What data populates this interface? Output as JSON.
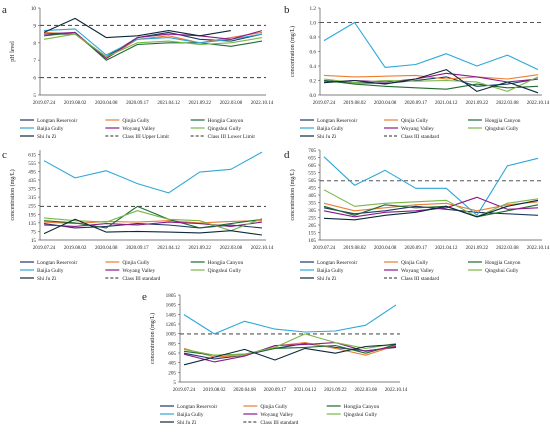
{
  "colors": {
    "Longtan Reservoir": "#1f3864",
    "Qinjia Gully": "#ed7d31",
    "Hongjia Canyon": "#1e6b30",
    "Baijia Gully": "#2ea8d8",
    "Woyang Valley": "#8b1a8b",
    "Qingshui Gully": "#7ab648",
    "Shi Ju Zi": "#0d2a3a",
    "Class III standard": "#555555"
  },
  "chart_data": [
    {
      "panel": "a",
      "type": "line",
      "ylabel": "pH level",
      "ylim": [
        5,
        10
      ],
      "yticks": [
        "5",
        "6",
        "7",
        "8",
        "9",
        "10"
      ],
      "categories": [
        "2019.07.24",
        "2019.08.02",
        "2020.04.08",
        "2020.09.17",
        "2021.04.12",
        "2021.09.22",
        "2022.03.08",
        "2022.10.14"
      ],
      "series": [
        {
          "name": "Longtan Reservoir",
          "values": [
            8.5,
            8.5,
            7.2,
            8.3,
            8.6,
            8.2,
            8.1,
            8.5
          ]
        },
        {
          "name": "Qinjia Gully",
          "values": [
            8.6,
            8.5,
            7.1,
            8.2,
            8.4,
            8.0,
            8.3,
            8.6
          ]
        },
        {
          "name": "Hongjia Canyon",
          "values": [
            8.4,
            8.6,
            7.0,
            7.9,
            8.0,
            8.0,
            7.8,
            8.1
          ]
        },
        {
          "name": "Baijia Gully",
          "values": [
            8.7,
            8.8,
            7.3,
            8.2,
            8.3,
            8.0,
            8.2,
            8.5
          ]
        },
        {
          "name": "Woyang Valley",
          "values": [
            8.5,
            8.6,
            7.1,
            8.3,
            8.5,
            8.4,
            8.2,
            8.7
          ]
        },
        {
          "name": "Qingshui Gully",
          "values": [
            8.2,
            8.5,
            7.2,
            8.0,
            8.1,
            7.9,
            8.0,
            8.3
          ]
        },
        {
          "name": "Shi Ju Zi",
          "values": [
            8.6,
            9.4,
            8.3,
            8.4,
            8.7,
            8.4,
            8.7,
            null
          ]
        }
      ],
      "hlines": [
        {
          "name": "Class III Upper Limit",
          "value": 9
        },
        {
          "name": "Class III Lower Limit",
          "value": 6
        }
      ],
      "legend": [
        "Longtan Reservoir",
        "Qinjia Gully",
        "Hongjia Canyon",
        "Baijia Gully",
        "Woyang Valley",
        "Qingshui Gully",
        "Shi Ju Zi",
        "Class III Upper Limit",
        "Class III Lower Limit"
      ]
    },
    {
      "panel": "b",
      "type": "line",
      "ylabel": "concentration (mg/L)",
      "ylim": [
        0.0,
        1.2
      ],
      "yticks": [
        "0.0",
        "0.2",
        "0.4",
        "0.6",
        "0.8",
        "1.0",
        "1.2"
      ],
      "categories": [
        "2019.07.24",
        "2019.08.02",
        "2020.04.08",
        "2020.09.17",
        "2021.04.12",
        "2021.09.22",
        "2022.03.08",
        "2022.10.14"
      ],
      "series": [
        {
          "name": "Longtan Reservoir",
          "values": [
            0.2,
            0.17,
            0.16,
            0.2,
            0.25,
            0.12,
            0.15,
            0.22
          ]
        },
        {
          "name": "Qinjia Gully",
          "values": [
            0.27,
            0.25,
            0.26,
            0.27,
            0.22,
            0.25,
            0.22,
            0.28
          ]
        },
        {
          "name": "Hongjia Canyon",
          "values": [
            0.2,
            0.15,
            0.12,
            0.1,
            0.08,
            0.15,
            0.1,
            0.12
          ]
        },
        {
          "name": "Baijia Gully",
          "values": [
            0.75,
            1.0,
            0.38,
            0.42,
            0.57,
            0.4,
            0.55,
            0.35
          ]
        },
        {
          "name": "Woyang Valley",
          "values": [
            0.18,
            0.2,
            0.18,
            0.22,
            0.3,
            0.25,
            0.18,
            0.22
          ]
        },
        {
          "name": "Qingshui Gully",
          "values": [
            0.22,
            0.17,
            0.2,
            0.19,
            0.2,
            0.18,
            0.05,
            0.25
          ]
        },
        {
          "name": "Shi Ju Zi",
          "values": [
            0.17,
            0.2,
            0.15,
            0.22,
            0.35,
            0.05,
            0.18,
            0.03
          ]
        }
      ],
      "hlines": [
        {
          "name": "Class III standard",
          "value": 1.0
        }
      ],
      "legend": [
        "Longtan Reservoir",
        "Qinjia Gully",
        "Hongjia Canyon",
        "Baijia Gully",
        "Woyang Valley",
        "Qingshui Gully",
        "Shi Ju Zi",
        "Class III standard"
      ]
    },
    {
      "panel": "c",
      "type": "line",
      "ylabel": "concentration (mg/L)",
      "ylim": [
        15,
        645
      ],
      "yticks": [
        "15",
        "75",
        "135",
        "195",
        "255",
        "315",
        "375",
        "435",
        "495",
        "555",
        "615"
      ],
      "categories": [
        "2019.07.24",
        "2019.08.02",
        "2020.04.08",
        "2020.09.17",
        "2021.04.12",
        "2021.09.22",
        "2022.03.08",
        "2022.10.14"
      ],
      "series": [
        {
          "name": "Longtan Reservoir",
          "values": [
            130,
            100,
            110,
            130,
            120,
            100,
            120,
            100
          ]
        },
        {
          "name": "Qinjia Gully",
          "values": [
            140,
            130,
            145,
            140,
            150,
            135,
            145,
            150
          ]
        },
        {
          "name": "Hongjia Canyon",
          "values": [
            150,
            135,
            100,
            250,
            160,
            100,
            130,
            160
          ]
        },
        {
          "name": "Baijia Gully",
          "values": [
            570,
            450,
            500,
            410,
            345,
            490,
            510,
            630
          ]
        },
        {
          "name": "Woyang Valley",
          "values": [
            120,
            110,
            130,
            120,
            140,
            130,
            110,
            140
          ]
        },
        {
          "name": "Qingshui Gully",
          "values": [
            170,
            150,
            140,
            220,
            160,
            150,
            80,
            165
          ]
        },
        {
          "name": "Shi Ju Zi",
          "values": [
            60,
            160,
            70,
            75,
            70,
            65,
            80,
            50
          ]
        }
      ],
      "hlines": [
        {
          "name": "Class III standard",
          "value": 250
        }
      ],
      "legend": [
        "Longtan Reservoir",
        "Qinjia Gully",
        "Hongjia Canyon",
        "Baijia Gully",
        "Woyang Valley",
        "Qingshui Gully",
        "Shi Ju Zi",
        "Class III standard"
      ]
    },
    {
      "panel": "d",
      "type": "line",
      "ylabel": "concentration (mg/L)",
      "ylim": [
        105,
        705
      ],
      "yticks": [
        "105",
        "155",
        "205",
        "255",
        "305",
        "355",
        "405",
        "455",
        "505",
        "555",
        "605",
        "655",
        "705"
      ],
      "categories": [
        "2019.07.24",
        "2019.08.02",
        "2020.04.08",
        "2020.09.17",
        "2021.04.12",
        "2021.09.22",
        "2022.03.08",
        "2022.10.14"
      ],
      "series": [
        {
          "name": "Longtan Reservoir",
          "values": [
            320,
            280,
            300,
            330,
            310,
            290,
            280,
            270
          ]
        },
        {
          "name": "Qinjia Gully",
          "values": [
            350,
            300,
            320,
            340,
            350,
            300,
            340,
            360
          ]
        },
        {
          "name": "Hongjia Canyon",
          "values": [
            330,
            270,
            340,
            320,
            330,
            260,
            300,
            340
          ]
        },
        {
          "name": "Baijia Gully",
          "values": [
            660,
            470,
            570,
            450,
            450,
            270,
            600,
            650
          ]
        },
        {
          "name": "Woyang Valley",
          "values": [
            300,
            260,
            290,
            300,
            320,
            390,
            310,
            320
          ]
        },
        {
          "name": "Qingshui Gully",
          "values": [
            440,
            330,
            350,
            360,
            370,
            260,
            350,
            380
          ]
        },
        {
          "name": "Shi Ju Zi",
          "values": [
            250,
            240,
            270,
            290,
            330,
            260,
            330,
            370
          ]
        }
      ],
      "hlines": [
        {
          "name": "Class III standard",
          "value": 500
        }
      ],
      "legend": [
        "Longtan Reservoir",
        "Qinjia Gully",
        "Hongjia Canyon",
        "Baijia Gully",
        "Woyang Valley",
        "Qingshui Gully",
        "Shi Ju Zi",
        "Class III standard"
      ]
    },
    {
      "panel": "e",
      "type": "line",
      "ylabel": "concentration (mg/L)",
      "ylim": [
        5,
        1805
      ],
      "yticks": [
        "5",
        "205",
        "405",
        "605",
        "805",
        "1005",
        "1205",
        "1405",
        "1605",
        "1805"
      ],
      "categories": [
        "2019.07.24",
        "2019.08.02",
        "2020.04.08",
        "2020.09.17",
        "2021.04.12",
        "2021.09.22",
        "2022.03.08",
        "2022.10.14"
      ],
      "series": [
        {
          "name": "Longtan Reservoir",
          "values": [
            600,
            480,
            560,
            700,
            800,
            720,
            650,
            720
          ]
        },
        {
          "name": "Qinjia Gully",
          "values": [
            700,
            520,
            560,
            750,
            820,
            700,
            560,
            760
          ]
        },
        {
          "name": "Hongjia Canyon",
          "values": [
            640,
            560,
            580,
            700,
            720,
            760,
            600,
            780
          ]
        },
        {
          "name": "Baijia Gully",
          "values": [
            1400,
            1000,
            1260,
            1100,
            1040,
            1060,
            1180,
            1600
          ]
        },
        {
          "name": "Woyang Valley",
          "values": [
            580,
            420,
            540,
            760,
            780,
            820,
            640,
            740
          ]
        },
        {
          "name": "Qingshui Gully",
          "values": [
            680,
            560,
            580,
            720,
            1000,
            820,
            700,
            800
          ]
        },
        {
          "name": "Shi Ju Zi",
          "values": [
            360,
            520,
            680,
            460,
            700,
            600,
            740,
            780
          ]
        }
      ],
      "hlines": [
        {
          "name": "Class III standard",
          "value": 1000
        }
      ],
      "legend": [
        "Longtan Reservoir",
        "Qinjia Gully",
        "Hongjia Canyon",
        "Baijia Gully",
        "Woyang Valley",
        "Qingshui Gully",
        "Shi Ju Zi",
        "Class III standard"
      ]
    }
  ]
}
